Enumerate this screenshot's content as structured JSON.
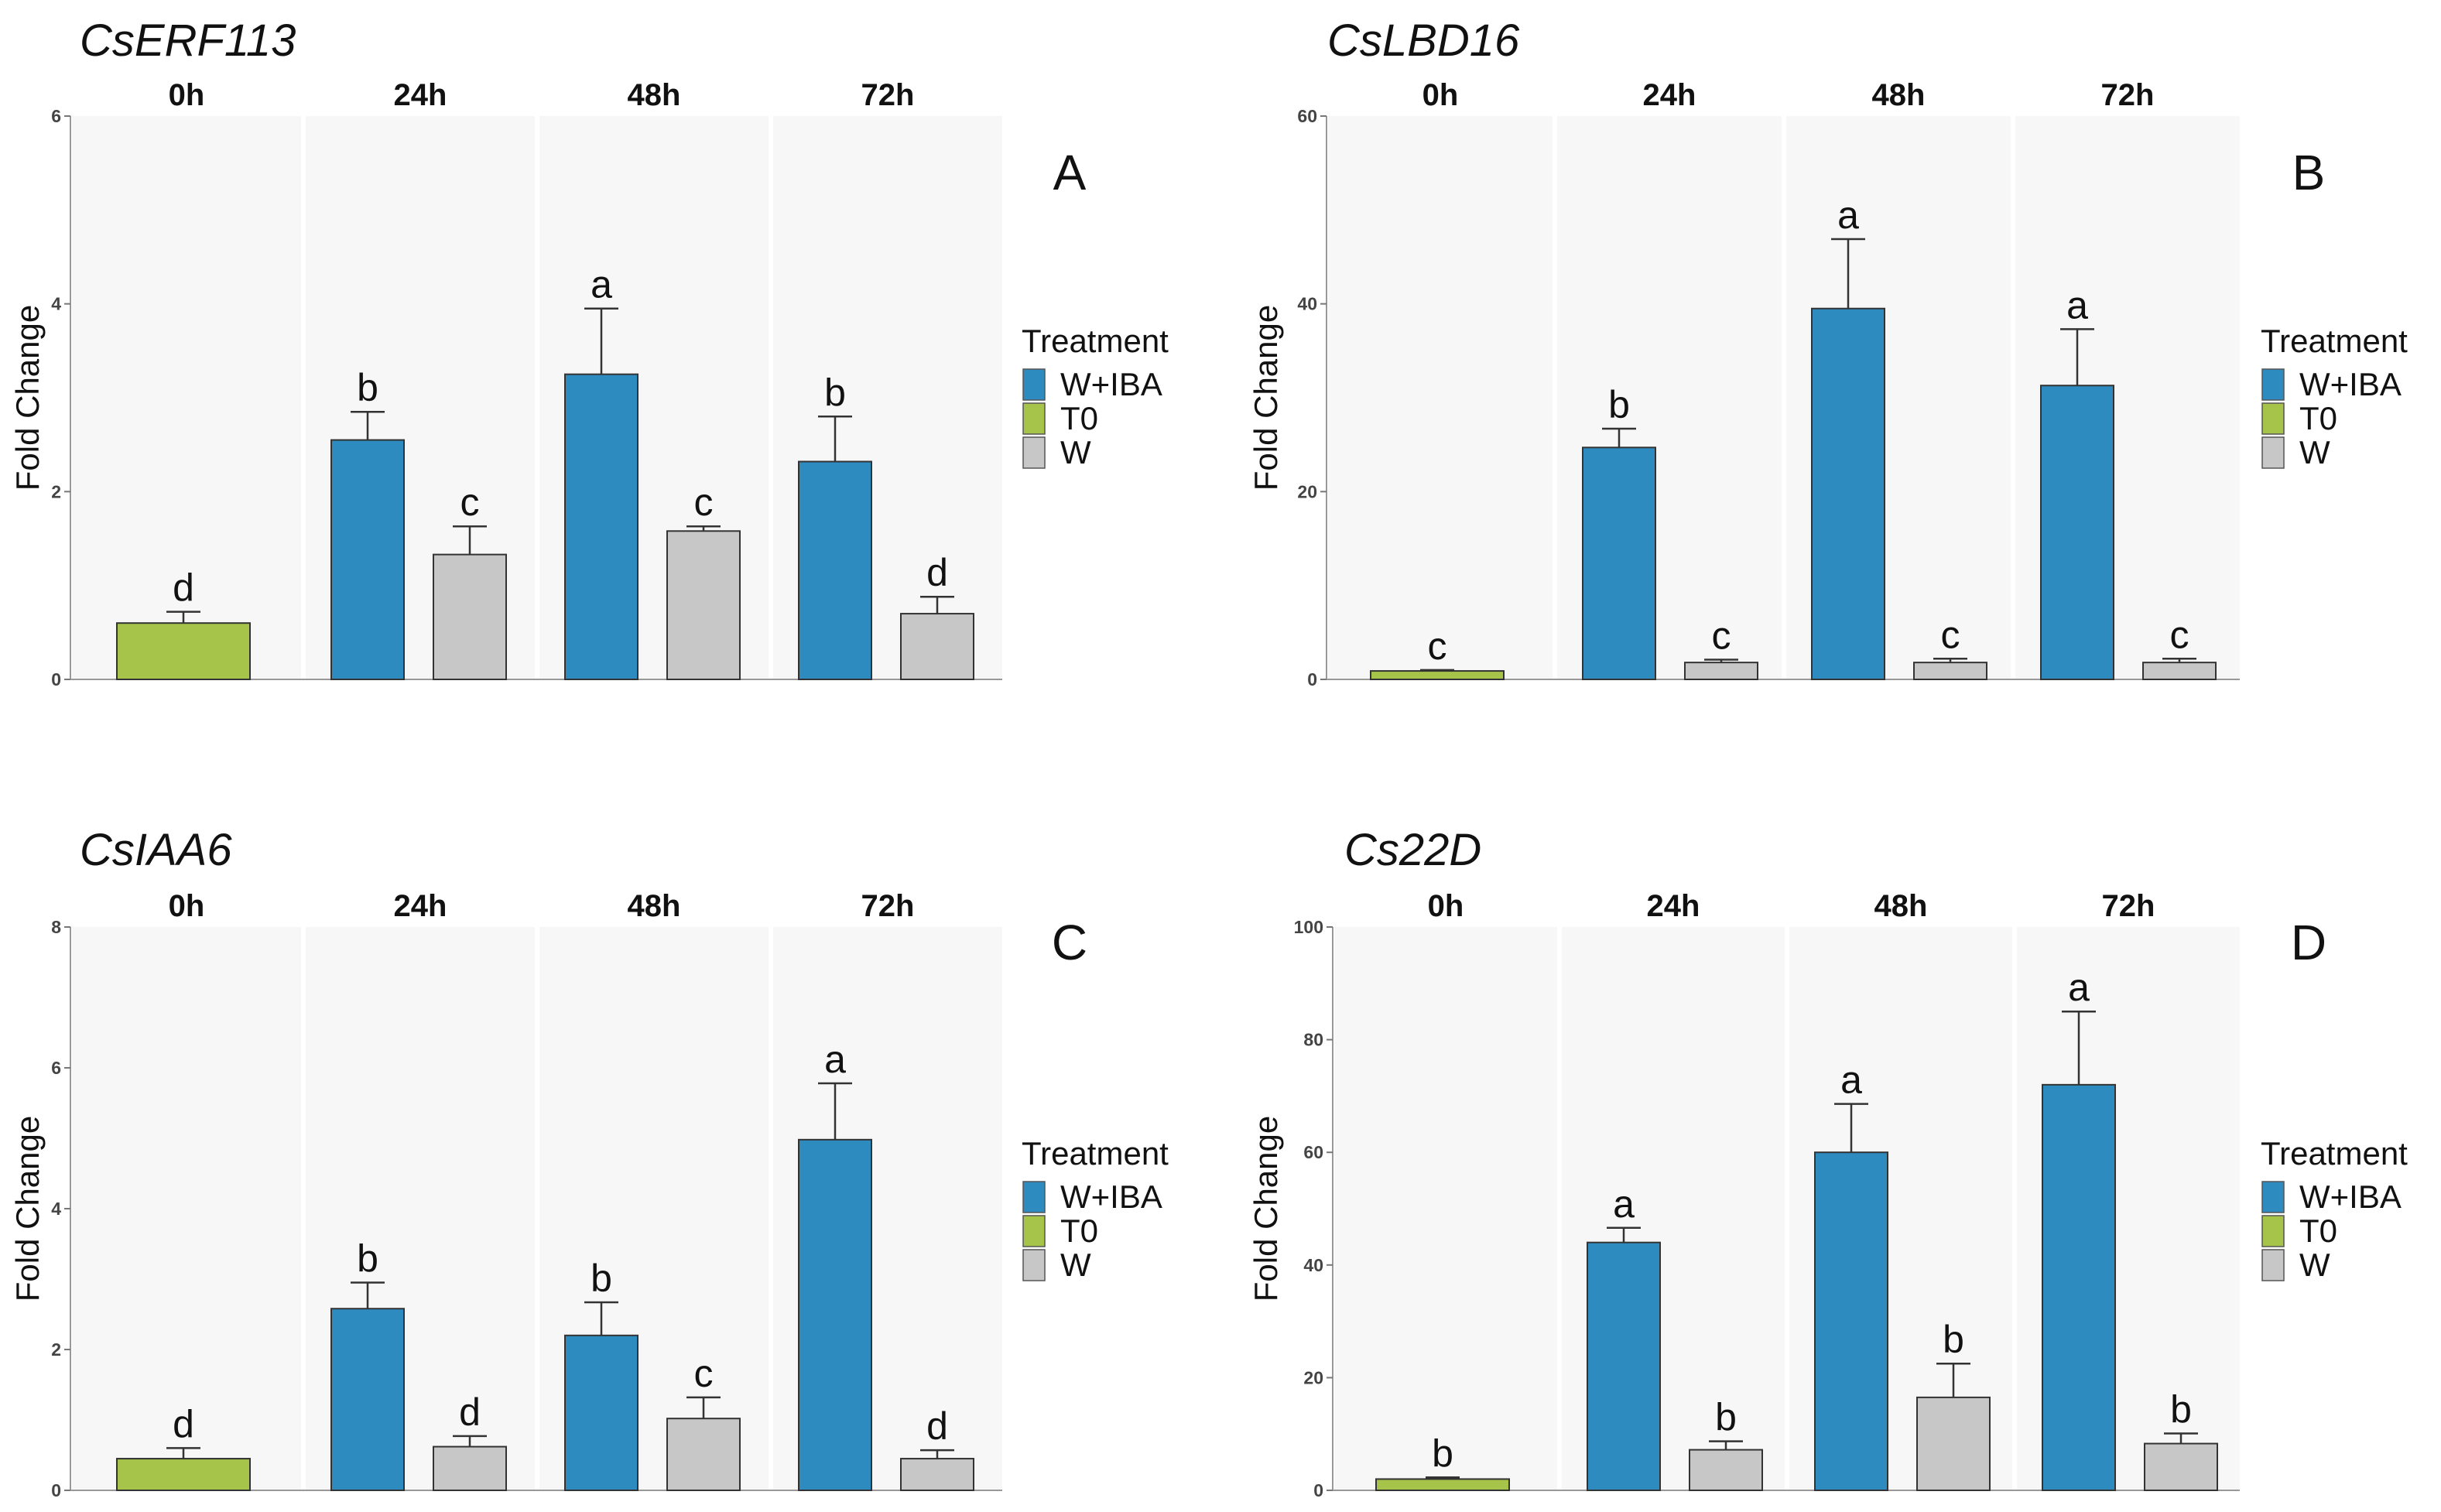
{
  "chart_data": [
    {
      "type": "bar",
      "gene": "CsERF113",
      "panel_letter": "A",
      "facets": [
        "0h",
        "24h",
        "48h",
        "72h"
      ],
      "ylabel": "Fold Change",
      "ylim": [
        0,
        6
      ],
      "yticks": [
        0,
        2,
        4,
        6
      ],
      "legend": {
        "title": "Treatment",
        "entries": [
          "W+IBA",
          "T0",
          "W"
        ],
        "colors": [
          "#2e8bc0",
          "#a6c44a",
          "#c7c7c7"
        ]
      },
      "series": [
        {
          "name": "T0",
          "facet": "0h",
          "value": 0.6,
          "error": 0.12,
          "letter": "d"
        },
        {
          "name": "W+IBA",
          "facet": "24h",
          "value": 2.55,
          "error": 0.3,
          "letter": "b"
        },
        {
          "name": "W",
          "facet": "24h",
          "value": 1.33,
          "error": 0.3,
          "letter": "c"
        },
        {
          "name": "W+IBA",
          "facet": "48h",
          "value": 3.25,
          "error": 0.7,
          "letter": "a"
        },
        {
          "name": "W",
          "facet": "48h",
          "value": 1.58,
          "error": 0.05,
          "letter": "c"
        },
        {
          "name": "W+IBA",
          "facet": "72h",
          "value": 2.32,
          "error": 0.48,
          "letter": "b"
        },
        {
          "name": "W",
          "facet": "72h",
          "value": 0.7,
          "error": 0.18,
          "letter": "d"
        }
      ]
    },
    {
      "type": "bar",
      "gene": "CsLBD16",
      "panel_letter": "B",
      "facets": [
        "0h",
        "24h",
        "48h",
        "72h"
      ],
      "ylabel": "Fold Change",
      "ylim": [
        0,
        60
      ],
      "yticks": [
        0,
        20,
        40,
        60
      ],
      "legend": {
        "title": "Treatment",
        "entries": [
          "W+IBA",
          "T0",
          "W"
        ],
        "colors": [
          "#2e8bc0",
          "#a6c44a",
          "#c7c7c7"
        ]
      },
      "series": [
        {
          "name": "T0",
          "facet": "0h",
          "value": 0.9,
          "error": 0.1,
          "letter": "c"
        },
        {
          "name": "W+IBA",
          "facet": "24h",
          "value": 24.7,
          "error": 2.0,
          "letter": "b"
        },
        {
          "name": "W",
          "facet": "24h",
          "value": 1.8,
          "error": 0.3,
          "letter": "c"
        },
        {
          "name": "W+IBA",
          "facet": "48h",
          "value": 39.5,
          "error": 7.4,
          "letter": "a"
        },
        {
          "name": "W",
          "facet": "48h",
          "value": 1.8,
          "error": 0.4,
          "letter": "c"
        },
        {
          "name": "W+IBA",
          "facet": "72h",
          "value": 31.3,
          "error": 6.0,
          "letter": "a"
        },
        {
          "name": "W",
          "facet": "72h",
          "value": 1.8,
          "error": 0.4,
          "letter": "c"
        }
      ]
    },
    {
      "type": "bar",
      "gene": "CsIAA6",
      "panel_letter": "C",
      "facets": [
        "0h",
        "24h",
        "48h",
        "72h"
      ],
      "ylabel": "Fold Change",
      "ylim": [
        0,
        8
      ],
      "yticks": [
        0,
        2,
        4,
        6,
        8
      ],
      "legend": {
        "title": "Treatment",
        "entries": [
          "W+IBA",
          "T0",
          "W"
        ],
        "colors": [
          "#2e8bc0",
          "#a6c44a",
          "#c7c7c7"
        ]
      },
      "series": [
        {
          "name": "T0",
          "facet": "0h",
          "value": 0.45,
          "error": 0.15,
          "letter": "d"
        },
        {
          "name": "W+IBA",
          "facet": "24h",
          "value": 2.58,
          "error": 0.37,
          "letter": "b"
        },
        {
          "name": "W",
          "facet": "24h",
          "value": 0.62,
          "error": 0.15,
          "letter": "d"
        },
        {
          "name": "W+IBA",
          "facet": "48h",
          "value": 2.2,
          "error": 0.47,
          "letter": "b"
        },
        {
          "name": "W",
          "facet": "48h",
          "value": 1.02,
          "error": 0.3,
          "letter": "c"
        },
        {
          "name": "W+IBA",
          "facet": "72h",
          "value": 4.98,
          "error": 0.8,
          "letter": "a"
        },
        {
          "name": "W",
          "facet": "72h",
          "value": 0.45,
          "error": 0.12,
          "letter": "d"
        }
      ]
    },
    {
      "type": "bar",
      "gene": "Cs22D",
      "panel_letter": "D",
      "facets": [
        "0h",
        "24h",
        "48h",
        "72h"
      ],
      "ylabel": "Fold Change",
      "ylim": [
        0,
        100
      ],
      "yticks": [
        0,
        20,
        40,
        60,
        80,
        100
      ],
      "legend": {
        "title": "Treatment",
        "entries": [
          "W+IBA",
          "T0",
          "W"
        ],
        "colors": [
          "#2e8bc0",
          "#a6c44a",
          "#c7c7c7"
        ]
      },
      "series": [
        {
          "name": "T0",
          "facet": "0h",
          "value": 2.0,
          "error": 0.3,
          "letter": "b"
        },
        {
          "name": "W+IBA",
          "facet": "24h",
          "value": 44.0,
          "error": 2.6,
          "letter": "a"
        },
        {
          "name": "W",
          "facet": "24h",
          "value": 7.2,
          "error": 1.5,
          "letter": "b"
        },
        {
          "name": "W+IBA",
          "facet": "48h",
          "value": 60.0,
          "error": 8.6,
          "letter": "a"
        },
        {
          "name": "W",
          "facet": "48h",
          "value": 16.5,
          "error": 6.0,
          "letter": "b"
        },
        {
          "name": "W+IBA",
          "facet": "72h",
          "value": 72.0,
          "error": 13.0,
          "letter": "a"
        },
        {
          "name": "W",
          "facet": "72h",
          "value": 8.3,
          "error": 1.8,
          "letter": "b"
        }
      ]
    }
  ]
}
